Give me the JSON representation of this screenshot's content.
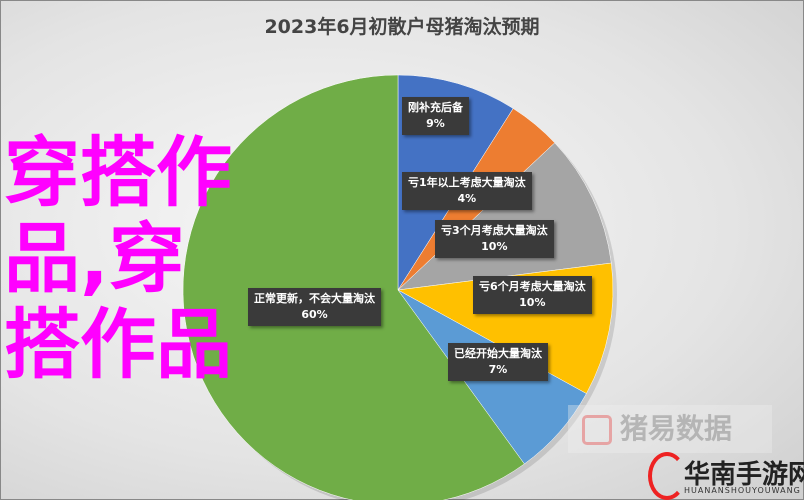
{
  "chart_data": {
    "type": "pie",
    "title": "2023年6月初散户母猪淘汰预期",
    "slices": [
      {
        "label": "刚补充后备",
        "value": 9,
        "display": "9%",
        "color": "#4472c4"
      },
      {
        "label": "亏1年以上考虑大量淘汰",
        "value": 4,
        "display": "4%",
        "color": "#ed7d31"
      },
      {
        "label": "亏3个月考虑大量淘汰",
        "value": 10,
        "display": "10%",
        "color": "#a5a5a5"
      },
      {
        "label": "亏6个月考虑大量淘汰",
        "value": 10,
        "display": "10%",
        "color": "#ffc000"
      },
      {
        "label": "已经开始大量淘汰",
        "value": 7,
        "display": "7%",
        "color": "#5b9bd5"
      },
      {
        "label": "正常更新，不会大量淘汰",
        "value": 60,
        "display": "60%",
        "color": "#70ad47"
      }
    ],
    "start": "top",
    "direction": "clockwise"
  },
  "overlay_text": "穿搭作品,穿搭作品",
  "watermarks": {
    "source": "猪易数据",
    "site": "华南手游网",
    "site_sub": "HUANANSHOUYOUWANG"
  }
}
